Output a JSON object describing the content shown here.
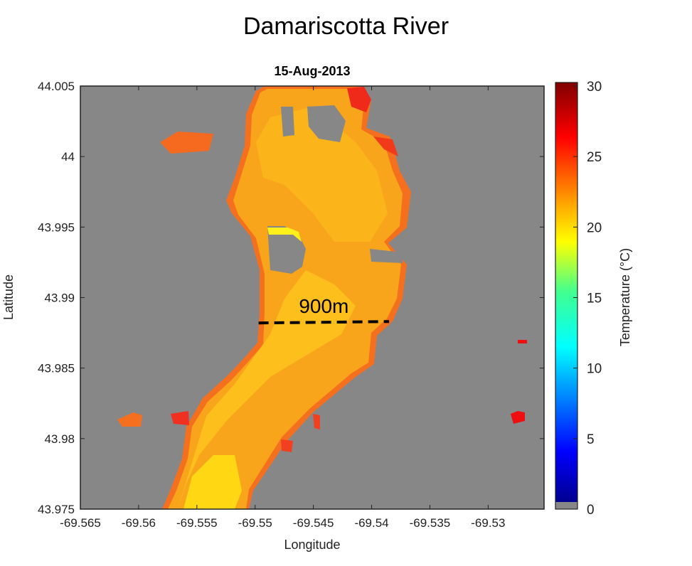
{
  "page_title": "Damariscotta River",
  "chart_data": {
    "type": "heatmap",
    "title": "15-Aug-2013",
    "xlabel": "Longitude",
    "ylabel": "Latitude",
    "xlim": [
      -69.565,
      -69.5252
    ],
    "ylim": [
      43.975,
      44.005
    ],
    "xticks": [
      "-69.565",
      "-69.56",
      "-69.555",
      "-69.55",
      "-69.545",
      "-69.54",
      "-69.535",
      "-69.53"
    ],
    "yticks": [
      "43.975",
      "43.98",
      "43.985",
      "43.99",
      "43.995",
      "44",
      "44.005"
    ],
    "colorbar": {
      "label": "Temperature (°C)",
      "label_main": "Temperature (",
      "label_sup": "o",
      "label_end": "C)",
      "range": [
        0,
        30
      ],
      "ticks": [
        "0",
        "5",
        "10",
        "15",
        "20",
        "25",
        "30"
      ],
      "colormap": "jet",
      "nan_color": "#878787"
    },
    "value_summary": {
      "typical_water_temp_c": [
        19,
        24
      ],
      "coolest_patch_c": 18
    },
    "annotation": {
      "text": "900m",
      "line_start": [
        -69.5497,
        43.9882
      ],
      "line_end": [
        -69.5385,
        43.9883
      ],
      "style": "dashed"
    }
  }
}
